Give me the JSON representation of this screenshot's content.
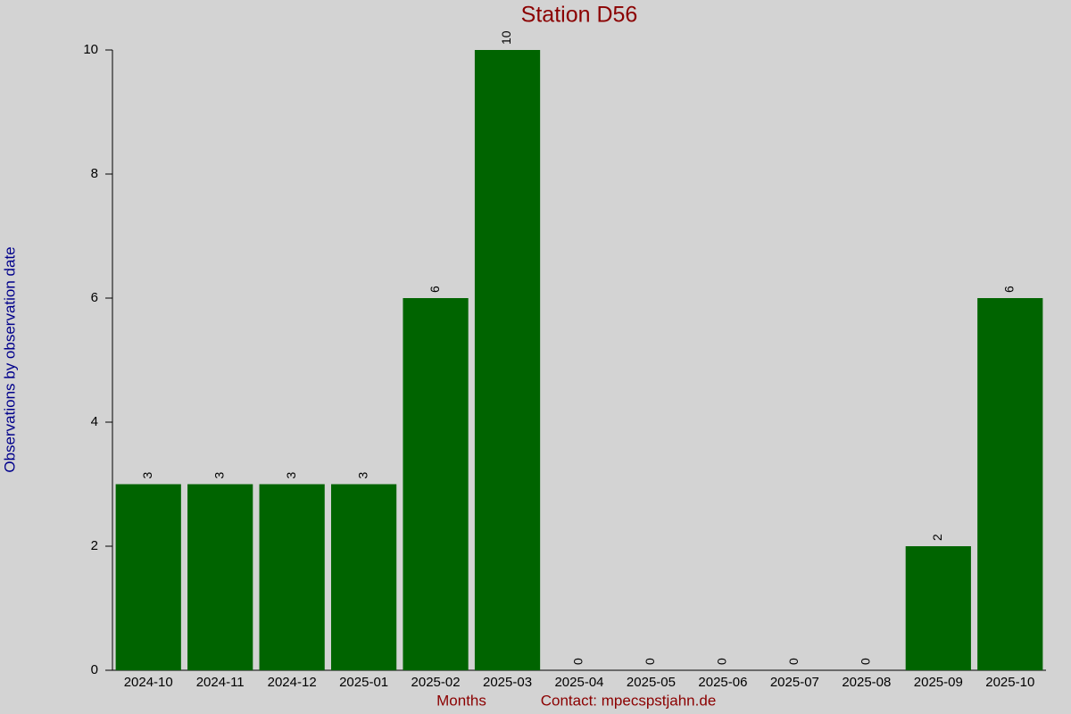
{
  "chart_data": {
    "type": "bar",
    "title": "Station D56",
    "categories": [
      "2024-10",
      "2024-11",
      "2024-12",
      "2025-01",
      "2025-02",
      "2025-03",
      "2025-04",
      "2025-05",
      "2025-06",
      "2025-07",
      "2025-08",
      "2025-09",
      "2025-10"
    ],
    "values": [
      3,
      3,
      3,
      3,
      6,
      10,
      0,
      0,
      0,
      0,
      0,
      2,
      6
    ],
    "color": "#006400",
    "ylim": [
      0,
      10
    ],
    "yticks": [
      0,
      2,
      4,
      6,
      8,
      10
    ],
    "y_label": "Observations by observation date",
    "x_label": "Months",
    "contact": "Contact: mpecspstjahn.de"
  }
}
